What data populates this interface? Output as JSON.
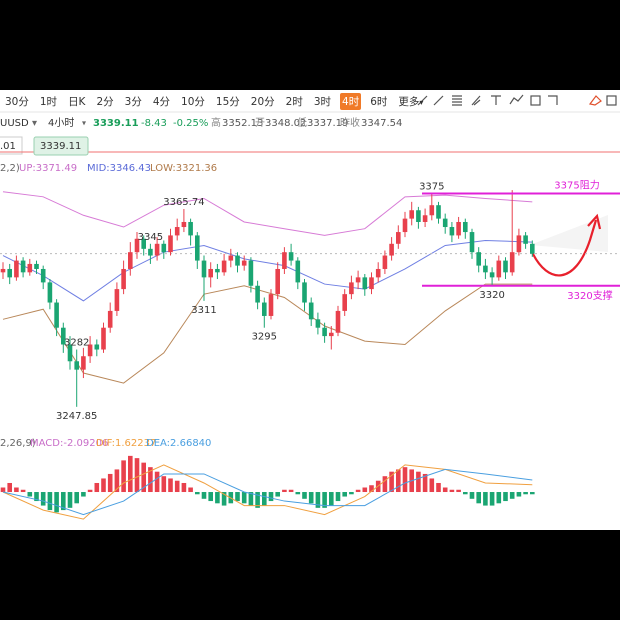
{
  "toolbar": {
    "intervals": [
      "30分",
      "1时",
      "日K",
      "2分",
      "3分",
      "4分",
      "10分",
      "15分",
      "20分",
      "2时",
      "3时",
      "4时",
      "6时",
      "更多"
    ],
    "active": "4时"
  },
  "header": {
    "symbol": "UUSD",
    "period": "4小时",
    "price": 3339.11,
    "change": -8.43,
    "change_pct": "-0.25%",
    "high_label": "高",
    "high": 3352.13,
    "open_label": "开",
    "open": 3348.02,
    "low_label": "低",
    "low": 3337.19,
    "prev_label": "昨收",
    "prev": 3347.54,
    "box_left": ".01",
    "box_price": 3339.11
  },
  "indicator": {
    "params": "2,2)",
    "up": "UP:3371.49",
    "mid": "MID:3346.43",
    "low": "LOW:3321.36"
  },
  "macd_header": {
    "params": "2,26,9)",
    "macd": "MACD:-2.09206",
    "dif": "DIF:1.62237",
    "dea": "DEA:2.66840"
  },
  "chart_data": {
    "type": "candlestick",
    "up_color": "#e8404c",
    "down_color": "#1aa572",
    "ylim": [
      3240,
      3386
    ],
    "candles": [
      [
        3328,
        3334,
        3324,
        3330
      ],
      [
        3330,
        3333,
        3321,
        3325
      ],
      [
        3325,
        3338,
        3323,
        3335
      ],
      [
        3335,
        3337,
        3325,
        3328
      ],
      [
        3328,
        3336,
        3326,
        3333
      ],
      [
        3333,
        3335,
        3327,
        3330
      ],
      [
        3330,
        3332,
        3318,
        3322
      ],
      [
        3322,
        3324,
        3306,
        3310
      ],
      [
        3310,
        3312,
        3290,
        3295
      ],
      [
        3295,
        3298,
        3280,
        3285
      ],
      [
        3285,
        3290,
        3270,
        3275
      ],
      [
        3275,
        3282,
        3247.85,
        3270
      ],
      [
        3270,
        3283,
        3265,
        3278
      ],
      [
        3278,
        3290,
        3274,
        3285
      ],
      [
        3285,
        3288,
        3278,
        3282
      ],
      [
        3282,
        3298,
        3280,
        3295
      ],
      [
        3295,
        3310,
        3292,
        3305
      ],
      [
        3305,
        3322,
        3302,
        3318
      ],
      [
        3318,
        3335,
        3315,
        3330
      ],
      [
        3330,
        3346,
        3326,
        3340
      ],
      [
        3340,
        3352,
        3336,
        3348
      ],
      [
        3348,
        3350,
        3338,
        3342
      ],
      [
        3342,
        3345,
        3333,
        3338
      ],
      [
        3338,
        3349,
        3335,
        3345
      ],
      [
        3345,
        3347,
        3336,
        3340
      ],
      [
        3340,
        3354,
        3338,
        3350
      ],
      [
        3350,
        3360,
        3347,
        3355
      ],
      [
        3355,
        3365.74,
        3352,
        3358
      ],
      [
        3358,
        3360,
        3344,
        3350
      ],
      [
        3350,
        3352,
        3330,
        3335
      ],
      [
        3335,
        3338,
        3311,
        3325
      ],
      [
        3325,
        3334,
        3319,
        3330
      ],
      [
        3330,
        3333,
        3324,
        3328
      ],
      [
        3328,
        3339,
        3326,
        3335
      ],
      [
        3335,
        3342,
        3331,
        3338
      ],
      [
        3338,
        3340,
        3328,
        3332
      ],
      [
        3332,
        3338,
        3329,
        3335
      ],
      [
        3335,
        3337,
        3316,
        3320
      ],
      [
        3320,
        3323,
        3306,
        3310
      ],
      [
        3310,
        3313,
        3295,
        3302
      ],
      [
        3302,
        3318,
        3300,
        3315
      ],
      [
        3315,
        3334,
        3312,
        3330
      ],
      [
        3330,
        3343,
        3327,
        3340
      ],
      [
        3340,
        3345,
        3332,
        3335
      ],
      [
        3335,
        3337,
        3318,
        3322
      ],
      [
        3322,
        3324,
        3305,
        3310
      ],
      [
        3310,
        3313,
        3296,
        3300
      ],
      [
        3300,
        3304,
        3291,
        3295
      ],
      [
        3295,
        3298,
        3286,
        3290
      ],
      [
        3290,
        3296,
        3282,
        3292
      ],
      [
        3292,
        3308,
        3290,
        3305
      ],
      [
        3305,
        3318,
        3302,
        3315
      ],
      [
        3315,
        3326,
        3312,
        3322
      ],
      [
        3322,
        3329,
        3318,
        3325
      ],
      [
        3325,
        3327,
        3314,
        3318
      ],
      [
        3318,
        3328,
        3315,
        3325
      ],
      [
        3325,
        3334,
        3322,
        3330
      ],
      [
        3330,
        3341,
        3327,
        3338
      ],
      [
        3338,
        3349,
        3335,
        3345
      ],
      [
        3345,
        3356,
        3342,
        3352
      ],
      [
        3352,
        3364,
        3349,
        3360
      ],
      [
        3360,
        3370,
        3356,
        3365
      ],
      [
        3365,
        3367,
        3354,
        3358
      ],
      [
        3358,
        3366,
        3355,
        3362
      ],
      [
        3362,
        3375,
        3359,
        3368
      ],
      [
        3368,
        3370,
        3357,
        3360
      ],
      [
        3360,
        3363,
        3351,
        3355
      ],
      [
        3355,
        3358,
        3346,
        3350
      ],
      [
        3350,
        3361,
        3348,
        3358
      ],
      [
        3358,
        3360,
        3348,
        3352
      ],
      [
        3352,
        3354,
        3336,
        3340
      ],
      [
        3340,
        3343,
        3328,
        3332
      ],
      [
        3332,
        3336,
        3324,
        3328
      ],
      [
        3328,
        3331,
        3320,
        3325
      ],
      [
        3325,
        3338,
        3323,
        3335
      ],
      [
        3335,
        3337,
        3324,
        3328
      ],
      [
        3328,
        3377,
        3326,
        3340
      ],
      [
        3340,
        3354,
        3338,
        3350
      ],
      [
        3350,
        3352,
        3342,
        3345
      ],
      [
        3345,
        3347,
        3337.19,
        3339.11
      ]
    ],
    "bands": {
      "x": [
        0,
        6,
        12,
        18,
        24,
        30,
        36,
        42,
        48,
        54,
        60,
        66,
        72,
        79
      ],
      "series": [
        {
          "color": "#d77bd6",
          "values": [
            3376,
            3373,
            3362,
            3355,
            3368,
            3372,
            3358,
            3354,
            3350,
            3354,
            3373,
            3374,
            3372,
            3370
          ]
        },
        {
          "color": "#6f7fe3",
          "values": [
            3338,
            3326,
            3311,
            3328,
            3340,
            3344,
            3336,
            3332,
            3321,
            3318,
            3330,
            3344,
            3347,
            3346
          ]
        },
        {
          "color": "#b9885a",
          "values": [
            3300,
            3306,
            3268,
            3262,
            3280,
            3315,
            3320,
            3313,
            3296,
            3287,
            3285,
            3305,
            3321,
            3321
          ]
        }
      ]
    },
    "price_labels": [
      3375,
      3365.74,
      3345,
      3311,
      3295,
      3282,
      3247.85,
      3320
    ],
    "levels": [
      {
        "value": 3375,
        "label": "3375阻力"
      },
      {
        "value": 3320,
        "label": "3320支撑"
      }
    ],
    "level_color": "#e020d8",
    "macd": {
      "ylim": [
        -7.3,
        9.3
      ],
      "up_color": "#e8404c",
      "down_color": "#1aa572",
      "histogram": [
        1,
        2,
        1,
        0.5,
        -1,
        -2,
        -3,
        -4,
        -4.5,
        -4,
        -3.5,
        -2.5,
        -1,
        0.5,
        2,
        3,
        4,
        5,
        7,
        8,
        7.5,
        6.5,
        5.5,
        4.5,
        3.5,
        3,
        2.5,
        2,
        1,
        -0.5,
        -1.5,
        -2,
        -2.5,
        -3,
        -2.5,
        -2,
        -2.5,
        -3,
        -3.5,
        -3,
        -2,
        -1,
        0.5,
        0.5,
        -0.5,
        -1.5,
        -2.5,
        -3.5,
        -3.5,
        -3,
        -2,
        -1,
        -0.5,
        0.5,
        1,
        1.5,
        2.5,
        3.5,
        4.5,
        5,
        5.5,
        5,
        4.5,
        4,
        3,
        2,
        1,
        0.5,
        0.5,
        -0.5,
        -1.5,
        -2.5,
        -3,
        -3,
        -2.5,
        -2,
        -1.5,
        -1,
        -0.5,
        -0.5
      ],
      "x": [
        0,
        6,
        12,
        18,
        24,
        30,
        36,
        42,
        48,
        54,
        60,
        66,
        72,
        79
      ],
      "series": [
        {
          "color": "#f0a040",
          "values": [
            0,
            -4,
            -6,
            2,
            6,
            2,
            -3,
            -3,
            -5,
            -1,
            6,
            5,
            2,
            1.62
          ]
        },
        {
          "color": "#4a9fe0",
          "values": [
            0,
            -2,
            -5,
            -2,
            4,
            4,
            0,
            -2,
            -3,
            -3,
            2,
            5,
            4,
            2.67
          ]
        }
      ]
    }
  }
}
